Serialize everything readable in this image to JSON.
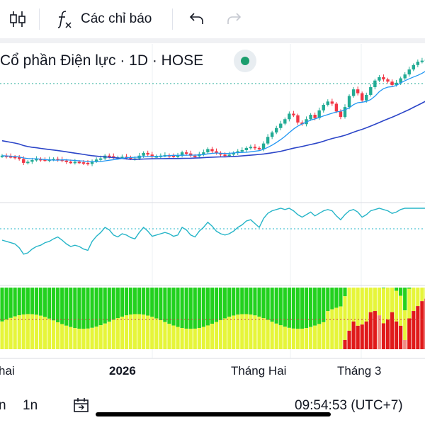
{
  "toolbar": {
    "indicators_label": "Các chỉ báo",
    "icons": [
      "candlestick-icon",
      "function-icon",
      "undo-icon",
      "redo-icon"
    ]
  },
  "chart_header": {
    "title": "Cổ phần Điện lực · 1D · HOSE",
    "status_color": "#1b9e6e"
  },
  "colors": {
    "up": "#22ab94",
    "down": "#f23645",
    "ma_slow": "#2b45c8",
    "ma_fast": "#2196f3",
    "oscillator": "#26b5c8",
    "zone_green": "#22d11e",
    "zone_yellow": "#e6f53a",
    "zone_red": "#e01a1a",
    "zone_pink": "#f08d84"
  },
  "time_axis": {
    "labels": [
      "hai",
      "2026",
      "Tháng Hai",
      "Tháng 3"
    ]
  },
  "bottom_bar": {
    "range_a": "n",
    "range_b": "1n",
    "clock": "09:54:53 (UTC+7)",
    "icons": [
      "date-range-icon"
    ]
  },
  "chart_data": {
    "type": "candlestick",
    "panes": [
      "price",
      "oscillator",
      "zone-histogram"
    ],
    "count": 100,
    "price_close_index": [
      58,
      57,
      56,
      55,
      52,
      45,
      47,
      50,
      52,
      51,
      50,
      51,
      52,
      51,
      49,
      47,
      46,
      47,
      46,
      45,
      43,
      48,
      51,
      53,
      58,
      57,
      55,
      55,
      56,
      55,
      53,
      53,
      58,
      63,
      60,
      57,
      57,
      58,
      59,
      58,
      57,
      58,
      64,
      62,
      58,
      57,
      61,
      64,
      70,
      66,
      63,
      60,
      59,
      60,
      63,
      66,
      68,
      72,
      74,
      72,
      70,
      80,
      92,
      100,
      108,
      116,
      124,
      134,
      131,
      118,
      115,
      124,
      132,
      126,
      140,
      150,
      156,
      152,
      138,
      128,
      146,
      166,
      178,
      171,
      158,
      168,
      182,
      194,
      200,
      196,
      192,
      186,
      190,
      198,
      205,
      214,
      222,
      228,
      230,
      232
    ],
    "oscillator_index": [
      50,
      48,
      46,
      44,
      38,
      28,
      30,
      36,
      40,
      42,
      46,
      48,
      52,
      55,
      50,
      44,
      40,
      42,
      40,
      36,
      34,
      48,
      56,
      62,
      70,
      66,
      58,
      55,
      60,
      58,
      54,
      52,
      62,
      70,
      64,
      56,
      58,
      60,
      62,
      60,
      56,
      58,
      70,
      66,
      58,
      55,
      64,
      70,
      78,
      72,
      64,
      60,
      58,
      60,
      64,
      70,
      74,
      80,
      82,
      76,
      70,
      84,
      92,
      96,
      98,
      100,
      98,
      100,
      96,
      90,
      86,
      90,
      94,
      88,
      92,
      96,
      98,
      96,
      88,
      82,
      90,
      96,
      98,
      94,
      86,
      90,
      96,
      98,
      100,
      98,
      96,
      92,
      94,
      98,
      100,
      100,
      100,
      100,
      100,
      100
    ],
    "zone_red_fraction": [
      0,
      0,
      0,
      0,
      0,
      0,
      0,
      0,
      0,
      0,
      0,
      0,
      0,
      0,
      0,
      0,
      0,
      0,
      0,
      0,
      0,
      0,
      0,
      0,
      0,
      0,
      0,
      0,
      0,
      0,
      0,
      0,
      0,
      0,
      0,
      0,
      0,
      0,
      0,
      0,
      0,
      0,
      0,
      0,
      0,
      0,
      0,
      0,
      0,
      0,
      0,
      0,
      0,
      0,
      0,
      0,
      0,
      0,
      0,
      0,
      0,
      0,
      0,
      0,
      0,
      0,
      0,
      0,
      0,
      0,
      0,
      0,
      0,
      0,
      0,
      0,
      0,
      0,
      0,
      0,
      0.15,
      0.3,
      0.45,
      0.38,
      0.4,
      0.45,
      0.6,
      0.62,
      0.55,
      0.42,
      0.48,
      0.6,
      0.45,
      0.38,
      0.15,
      0.5,
      0.62,
      0.7,
      0.78,
      0.82
    ]
  }
}
